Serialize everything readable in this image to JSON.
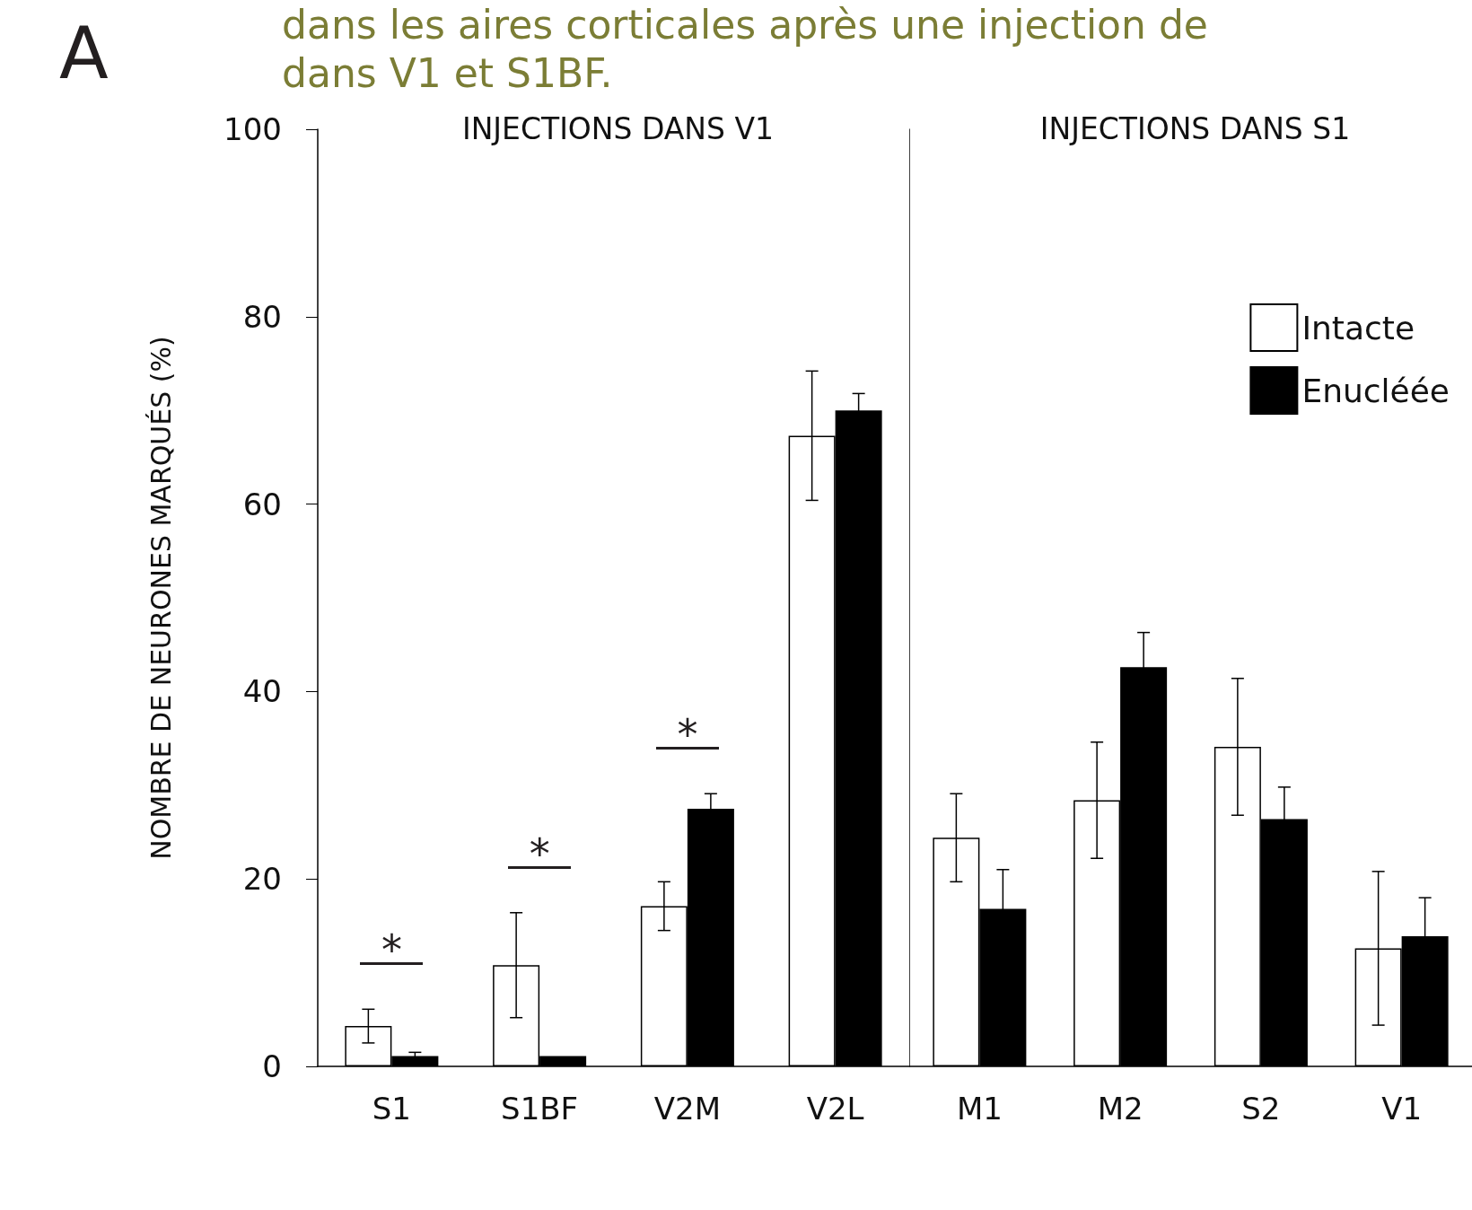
{
  "chart_data": [
    {
      "type": "bar",
      "title": "INJECTIONS DANS V1",
      "subtitle": "dans les aires corticales après une injection de\ndans V1 et S1BF.",
      "ylabel": "NOMBRE DE NEURONES MARQUÉS (%)",
      "categories": [
        "S1",
        "S1BF",
        "V2M",
        "V2L"
      ],
      "series": [
        {
          "color": "#ffffff",
          "values": [
            4.3,
            10.8,
            17.1,
            67.3
          ],
          "errors": [
            1.8,
            5.6,
            2.6,
            6.9
          ]
        },
        {
          "color": "#000000",
          "values": [
            1.1,
            1.1,
            27.5,
            70.0
          ],
          "errors": [
            0.4,
            null,
            1.6,
            1.8
          ]
        }
      ],
      "ylim": [
        0,
        100
      ],
      "yticks": [
        0,
        20,
        40,
        60,
        80,
        100
      ],
      "grid": false,
      "legend": false,
      "annotations": [
        "A",
        "*",
        "*",
        "*"
      ]
    },
    {
      "type": "bar",
      "title": "INJECTIONS DANS S1",
      "categories": [
        "M1",
        "M2",
        "S2",
        "V1"
      ],
      "series": [
        {
          "name": "Intacte",
          "color": "#ffffff",
          "values": [
            24.4,
            28.4,
            34.1,
            12.6
          ],
          "errors": [
            4.7,
            6.2,
            7.3,
            8.2
          ]
        },
        {
          "name": "Enucléée",
          "color": "#000000",
          "values": [
            16.8,
            42.6,
            26.4,
            13.9
          ],
          "errors": [
            4.2,
            3.7,
            3.4,
            4.1
          ]
        }
      ],
      "ylim": [
        0,
        100
      ],
      "yticks": [
        0,
        20,
        40,
        60,
        80,
        100
      ],
      "grid": false,
      "legend": "top right",
      "tick_labels": "x"
    }
  ]
}
